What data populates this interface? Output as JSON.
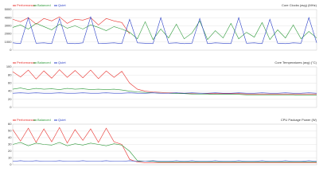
{
  "chart_data": [
    {
      "type": "line",
      "title": "Core Clocks (avg) (MHz)",
      "ylim": [
        0,
        5000
      ],
      "yticks": [
        0,
        1000,
        2000,
        3000,
        4000,
        5000
      ],
      "grid": true,
      "series": [
        {
          "name": "Performance",
          "color": "#e8322e",
          "values": [
            3800,
            3500,
            4000,
            3200,
            3900,
            3600,
            4100,
            3300,
            3800,
            3700,
            4000,
            3100,
            3900,
            3600,
            3400,
            2000,
            null,
            null,
            null,
            null,
            null,
            null,
            null,
            null,
            null,
            null,
            null,
            null,
            null,
            null,
            null,
            null,
            null,
            null,
            null,
            null,
            null,
            null,
            null,
            null
          ]
        },
        {
          "name": "Balanced",
          "color": "#2e9a3a",
          "values": [
            2800,
            3100,
            2600,
            3300,
            2900,
            2500,
            3200,
            2700,
            3000,
            2600,
            3100,
            2800,
            2400,
            2900,
            2600,
            2200,
            1400,
            3500,
            1300,
            2600,
            1500,
            3200,
            1400,
            2100,
            3600,
            1300,
            2400,
            1500,
            3300,
            1400,
            2200,
            1600,
            3400,
            1300,
            2500,
            1500,
            3100,
            1400,
            2300,
            1500
          ]
        },
        {
          "name": "Quiet",
          "color": "#2a3fc7",
          "values": [
            900,
            800,
            4000,
            850,
            900,
            800,
            3900,
            850,
            800,
            900,
            4100,
            800,
            850,
            900,
            800,
            3800,
            900,
            850,
            800,
            4000,
            850,
            900,
            800,
            850,
            3900,
            800,
            900,
            850,
            800,
            4000,
            850,
            900,
            800,
            3800,
            850,
            800,
            900,
            850,
            4000,
            900
          ]
        }
      ]
    },
    {
      "type": "line",
      "title": "Core Temperatures (avg) (°C)",
      "ylim": [
        0,
        100
      ],
      "yticks": [
        0,
        20,
        40,
        60,
        80,
        100
      ],
      "grid": true,
      "series": [
        {
          "name": "Performance",
          "color": "#e8322e",
          "values": [
            88,
            75,
            92,
            70,
            90,
            72,
            93,
            74,
            91,
            73,
            92,
            71,
            90,
            74,
            89,
            60,
            45,
            40,
            38,
            37,
            36,
            36,
            35,
            35,
            35,
            34,
            34,
            34,
            34,
            34,
            33,
            33,
            33,
            33,
            33,
            33,
            33,
            33,
            33,
            33
          ]
        },
        {
          "name": "Balanced",
          "color": "#2e9a3a",
          "values": [
            45,
            48,
            44,
            47,
            45,
            46,
            44,
            47,
            45,
            46,
            44,
            45,
            44,
            45,
            43,
            40,
            38,
            37,
            36,
            35,
            35,
            34,
            34,
            33,
            33,
            33,
            32,
            32,
            32,
            32,
            31,
            31,
            31,
            31,
            31,
            31,
            31,
            30,
            30,
            30
          ]
        },
        {
          "name": "Quiet",
          "color": "#2a3fc7",
          "values": [
            35,
            36,
            35,
            36,
            35,
            35,
            36,
            35,
            35,
            36,
            35,
            35,
            36,
            35,
            35,
            36,
            35,
            35,
            36,
            35,
            35,
            36,
            35,
            36,
            35,
            35,
            36,
            35,
            35,
            36,
            35,
            35,
            36,
            35,
            35,
            36,
            35,
            35,
            36,
            35
          ]
        }
      ]
    },
    {
      "type": "line",
      "title": "CPU Package Power (W)",
      "ylim": [
        0,
        60
      ],
      "yticks": [
        0,
        10,
        20,
        30,
        40,
        50,
        60
      ],
      "grid": true,
      "series": [
        {
          "name": "Performance",
          "color": "#e8322e",
          "values": [
            52,
            35,
            54,
            33,
            53,
            34,
            55,
            32,
            52,
            36,
            53,
            33,
            54,
            34,
            30,
            8,
            4,
            3,
            3,
            3,
            3,
            3,
            3,
            3,
            3,
            3,
            3,
            3,
            3,
            3,
            3,
            3,
            3,
            3,
            3,
            3,
            3,
            3,
            3,
            3
          ]
        },
        {
          "name": "Balanced",
          "color": "#2e9a3a",
          "values": [
            30,
            33,
            28,
            32,
            30,
            29,
            33,
            28,
            31,
            29,
            32,
            30,
            28,
            31,
            29,
            20,
            6,
            5,
            5,
            4,
            4,
            4,
            4,
            4,
            4,
            4,
            4,
            4,
            4,
            4,
            4,
            4,
            4,
            4,
            4,
            4,
            4,
            4,
            4,
            4
          ]
        },
        {
          "name": "Quiet",
          "color": "#2a3fc7",
          "values": [
            5,
            6,
            5,
            6,
            5,
            5,
            6,
            5,
            5,
            6,
            5,
            5,
            6,
            5,
            5,
            6,
            5,
            5,
            6,
            5,
            5,
            6,
            5,
            6,
            5,
            5,
            6,
            5,
            5,
            6,
            5,
            5,
            6,
            5,
            5,
            6,
            5,
            5,
            6,
            5
          ]
        }
      ]
    }
  ]
}
